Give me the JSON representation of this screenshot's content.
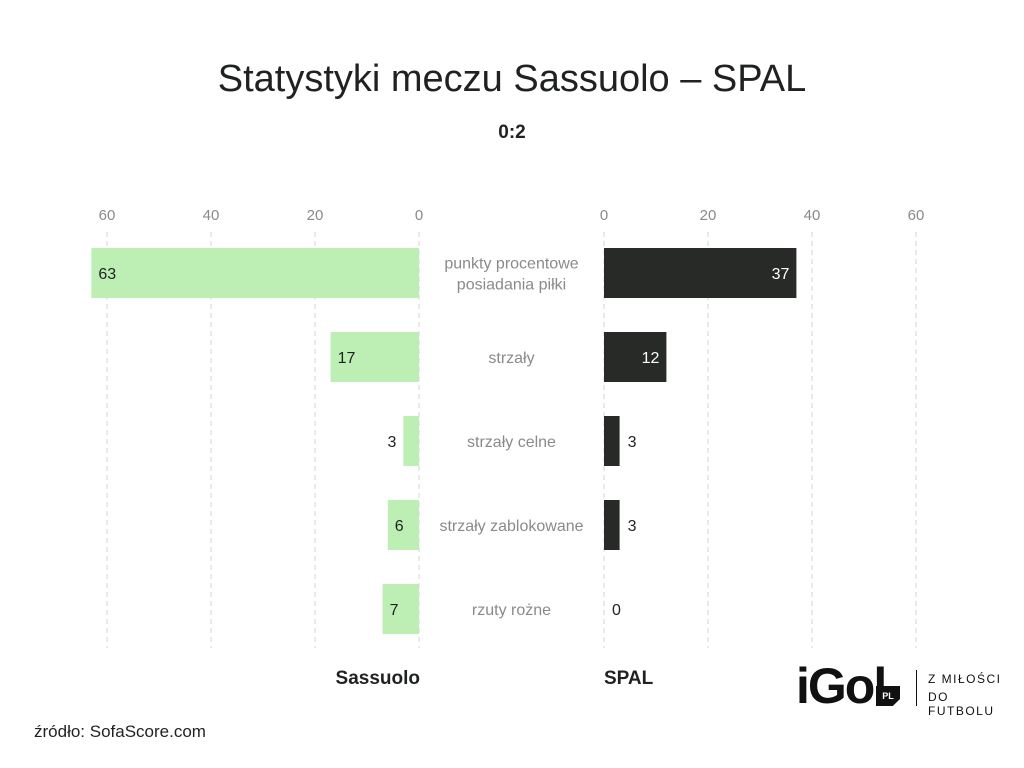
{
  "title": "Statystyki meczu Sassuolo – SPAL",
  "subtitle": "0:2",
  "colors": {
    "left": "#bdeeb4",
    "right": "#272a26",
    "grid": "#d4d4d4",
    "category": "#8a8a8a",
    "tick": "#8a8a8a"
  },
  "chart_data": {
    "type": "bar",
    "categories": [
      [
        "punkty procentowe",
        "posiadania piłki"
      ],
      [
        "strzały"
      ],
      [
        "strzały celne"
      ],
      [
        "strzały zablokowane"
      ],
      [
        "rzuty rożne"
      ]
    ],
    "series": [
      {
        "name": "Sassuolo",
        "values": [
          63,
          17,
          3,
          6,
          7
        ]
      },
      {
        "name": "SPAL",
        "values": [
          37,
          12,
          3,
          3,
          0
        ]
      }
    ],
    "left_ticks": [
      "60",
      "40",
      "20",
      "0"
    ],
    "right_ticks": [
      "0",
      "20",
      "40",
      "60"
    ],
    "xlim": [
      0,
      60
    ],
    "grid": true
  },
  "teams": {
    "left": "Sassuolo",
    "right": "SPAL"
  },
  "source": "źródło: SofaScore.com",
  "logo": {
    "word": "iGol",
    "badge": "PL",
    "tagline_1": "Z MIŁOŚCI",
    "tagline_2": "DO FUTBOLU"
  }
}
